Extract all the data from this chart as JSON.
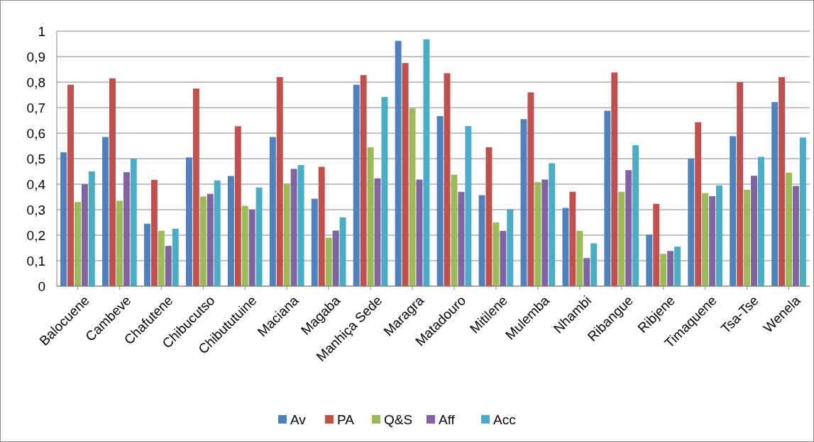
{
  "chart_data": {
    "type": "bar",
    "categories": [
      "Balocuene",
      "Cambeve",
      "Chafutene",
      "Chibucutso",
      "Chibututuine",
      "Maciana",
      "Magaba",
      "Manhiça Sede",
      "Maragra",
      "Matadouro",
      "Mitilene",
      "Mulemba",
      "Nhambi",
      "Ribangue",
      "Ribjene",
      "Timaquene",
      "Tsa-Tse",
      "Wenela"
    ],
    "series": [
      {
        "name": "Av",
        "color": "#4f81bd",
        "values": [
          0.525,
          0.585,
          0.245,
          0.505,
          0.432,
          0.585,
          0.343,
          0.79,
          0.962,
          0.667,
          0.357,
          0.655,
          0.307,
          0.688,
          0.202,
          0.5,
          0.588,
          0.722
        ]
      },
      {
        "name": "PA",
        "color": "#c0504d",
        "values": [
          0.79,
          0.815,
          0.417,
          0.775,
          0.627,
          0.82,
          0.468,
          0.828,
          0.875,
          0.835,
          0.545,
          0.76,
          0.37,
          0.838,
          0.323,
          0.643,
          0.8,
          0.82
        ]
      },
      {
        "name": "Q&S",
        "color": "#9bbb59",
        "values": [
          0.33,
          0.335,
          0.217,
          0.352,
          0.315,
          0.402,
          0.19,
          0.545,
          0.697,
          0.437,
          0.25,
          0.408,
          0.217,
          0.37,
          0.127,
          0.365,
          0.378,
          0.445
        ]
      },
      {
        "name": "Aff",
        "color": "#8064a2",
        "values": [
          0.4,
          0.447,
          0.158,
          0.362,
          0.3,
          0.46,
          0.218,
          0.423,
          0.418,
          0.37,
          0.217,
          0.418,
          0.11,
          0.455,
          0.138,
          0.353,
          0.433,
          0.393
        ]
      },
      {
        "name": "Acc",
        "color": "#4bacc6",
        "values": [
          0.45,
          0.5,
          0.225,
          0.415,
          0.387,
          0.475,
          0.27,
          0.742,
          0.968,
          0.628,
          0.302,
          0.482,
          0.168,
          0.553,
          0.155,
          0.395,
          0.507,
          0.583
        ]
      }
    ],
    "ylim": [
      0,
      1
    ],
    "yticks": [
      0,
      {
        "value": 0.1,
        "label": "0,1"
      },
      {
        "value": 0.2,
        "label": "0,2"
      },
      {
        "value": 0.3,
        "label": "0,3"
      },
      {
        "value": 0.4,
        "label": "0,4"
      },
      {
        "value": 0.5,
        "label": "0,5"
      },
      {
        "value": 0.6,
        "label": "0,6"
      },
      {
        "value": 0.7,
        "label": "0,7"
      },
      {
        "value": 0.8,
        "label": "0,8"
      },
      {
        "value": 0.9,
        "label": "0,9"
      },
      1
    ],
    "grid": "y",
    "legend": "bottom"
  }
}
